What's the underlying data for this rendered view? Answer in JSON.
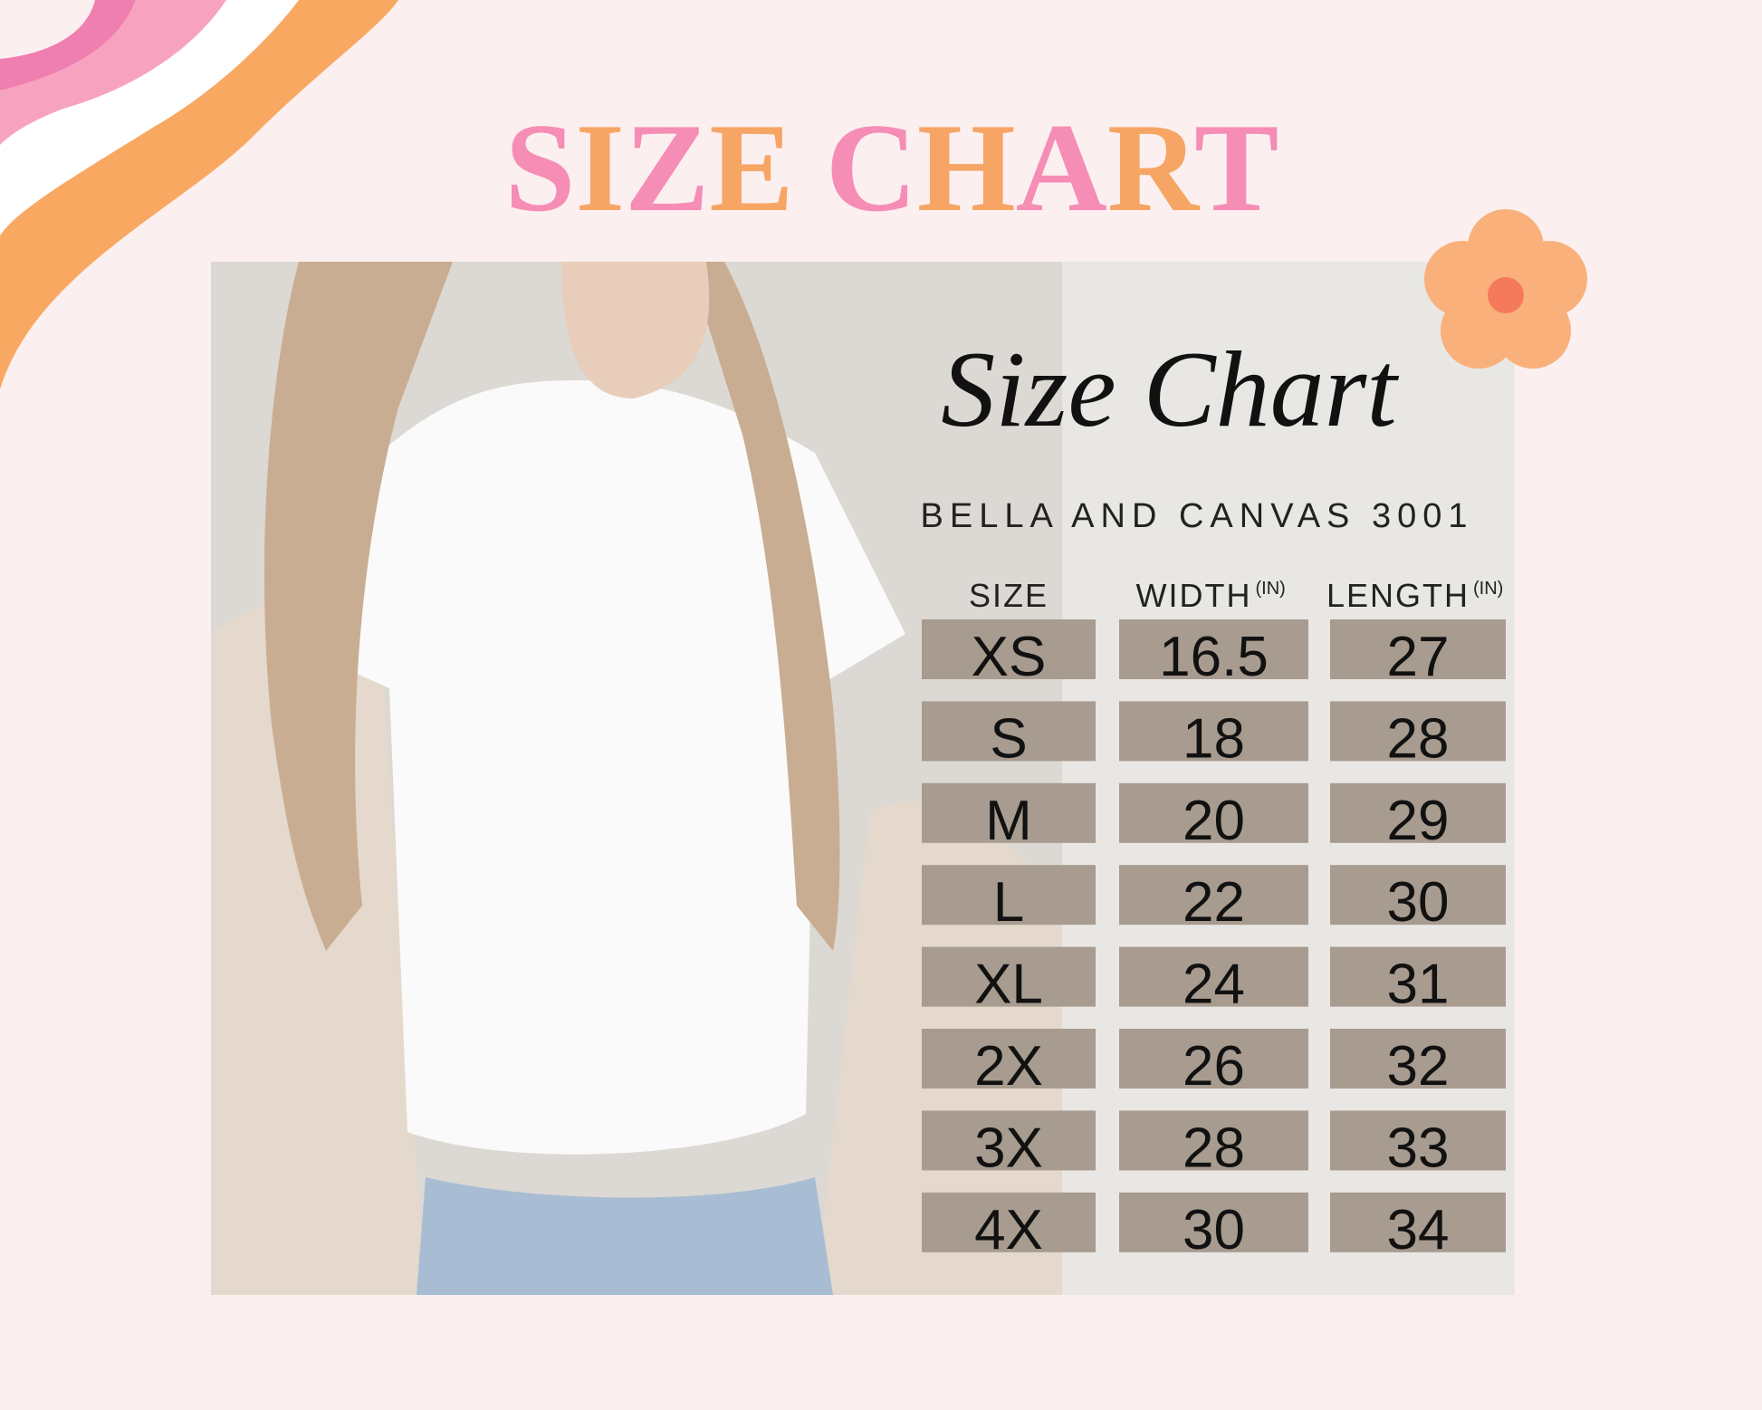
{
  "header": {
    "title": "SIZE CHART"
  },
  "card": {
    "script_title": "Size Chart",
    "subtitle": "BELLA AND CANVAS 3001"
  },
  "table": {
    "columns": [
      {
        "label": "SIZE"
      },
      {
        "label": "WIDTH",
        "unit": "(IN)"
      },
      {
        "label": "LENGTH",
        "unit": "(IN)"
      }
    ],
    "rows": [
      [
        "XS",
        "16.5",
        "27"
      ],
      [
        "S",
        "18",
        "28"
      ],
      [
        "M",
        "20",
        "29"
      ],
      [
        "L",
        "22",
        "30"
      ],
      [
        "XL",
        "24",
        "31"
      ],
      [
        "2X",
        "26",
        "32"
      ],
      [
        "3X",
        "28",
        "33"
      ],
      [
        "4X",
        "30",
        "34"
      ]
    ]
  }
}
